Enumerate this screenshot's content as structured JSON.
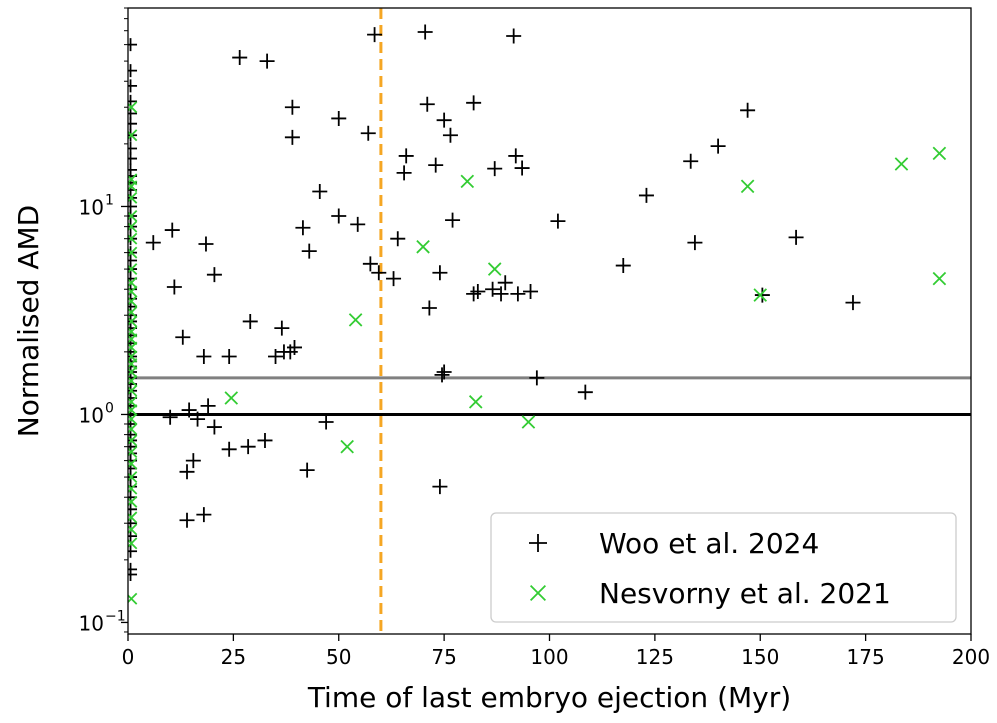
{
  "chart_data": {
    "type": "scatter",
    "title": "",
    "xlabel": "Time of last embryo ejection (Myr)",
    "ylabel": "Normalised AMD",
    "xlim": [
      0,
      200
    ],
    "ylim": [
      0.088,
      90
    ],
    "yscale": "log",
    "grid": false,
    "legend_position": "lower-right",
    "x_ticks": [
      0,
      25,
      50,
      75,
      100,
      125,
      150,
      175,
      200
    ],
    "x_tick_labels": [
      "0",
      "25",
      "50",
      "75",
      "100",
      "125",
      "150",
      "175",
      "200"
    ],
    "y_ticks": [
      0.1,
      1,
      10
    ],
    "y_tick_labels": [
      {
        "base": "10",
        "exp": "−1"
      },
      {
        "base": "10",
        "exp": "0"
      },
      {
        "base": "10",
        "exp": "1"
      }
    ],
    "reference_lines": [
      {
        "orientation": "horizontal",
        "y": 1.5,
        "color": "#808080",
        "style": "solid"
      },
      {
        "orientation": "horizontal",
        "y": 1.0,
        "color": "#000000",
        "style": "solid"
      },
      {
        "orientation": "vertical",
        "x": 60,
        "color": "#f5a623",
        "style": "dashed"
      }
    ],
    "series": [
      {
        "name": "Woo et al. 2024",
        "marker": "plus",
        "color": "#000000",
        "points": [
          [
            26.5,
            52
          ],
          [
            33,
            50
          ],
          [
            58.5,
            67
          ],
          [
            70.5,
            69
          ],
          [
            91.5,
            66
          ],
          [
            39,
            30
          ],
          [
            71,
            31
          ],
          [
            82,
            31.5
          ],
          [
            75,
            26
          ],
          [
            57,
            22.5
          ],
          [
            50,
            26.5
          ],
          [
            39,
            21.5
          ],
          [
            76.5,
            22
          ],
          [
            147,
            29
          ],
          [
            140,
            19.5
          ],
          [
            133.5,
            16.5
          ],
          [
            66,
            17.5
          ],
          [
            92,
            17.5
          ],
          [
            65.5,
            14.5
          ],
          [
            73,
            15.8
          ],
          [
            87,
            15.2
          ],
          [
            93.5,
            15.3
          ],
          [
            45.5,
            11.8
          ],
          [
            123,
            11.3
          ],
          [
            50,
            9
          ],
          [
            54.5,
            8.2
          ],
          [
            41.5,
            7.9
          ],
          [
            77,
            8.6
          ],
          [
            102,
            8.5
          ],
          [
            64,
            7
          ],
          [
            43,
            6.1
          ],
          [
            6,
            6.7
          ],
          [
            10.5,
            7.7
          ],
          [
            18.5,
            6.6
          ],
          [
            134.5,
            6.7
          ],
          [
            158.5,
            7.1
          ],
          [
            20.5,
            4.7
          ],
          [
            57.5,
            5.3
          ],
          [
            59.5,
            4.8
          ],
          [
            63,
            4.5
          ],
          [
            74,
            4.8
          ],
          [
            89.5,
            4.3
          ],
          [
            117.5,
            5.2
          ],
          [
            11,
            4.1
          ],
          [
            82,
            3.8
          ],
          [
            83,
            3.9
          ],
          [
            86.5,
            4
          ],
          [
            88.5,
            3.8
          ],
          [
            92.5,
            3.8
          ],
          [
            95.5,
            3.9
          ],
          [
            150.5,
            3.75
          ],
          [
            172,
            3.45
          ],
          [
            71.5,
            3.25
          ],
          [
            29,
            2.8
          ],
          [
            36.5,
            2.6
          ],
          [
            13,
            2.35
          ],
          [
            35,
            1.9
          ],
          [
            37,
            2.0
          ],
          [
            38.5,
            2.0
          ],
          [
            39.5,
            2.1
          ],
          [
            18,
            1.9
          ],
          [
            24,
            1.9
          ],
          [
            75,
            1.6
          ],
          [
            74.5,
            1.55
          ],
          [
            97,
            1.5
          ],
          [
            108.5,
            1.28
          ],
          [
            10,
            0.97
          ],
          [
            14.5,
            1.05
          ],
          [
            16.5,
            0.95
          ],
          [
            19,
            1.1
          ],
          [
            20.5,
            0.87
          ],
          [
            24,
            0.68
          ],
          [
            28.5,
            0.7
          ],
          [
            32.5,
            0.75
          ],
          [
            47,
            0.92
          ],
          [
            14,
            0.53
          ],
          [
            15.5,
            0.6
          ],
          [
            42.5,
            0.54
          ],
          [
            74,
            0.45
          ],
          [
            14,
            0.31
          ],
          [
            18,
            0.33
          ]
        ]
      },
      {
        "name": "Nesvorny et al. 2021",
        "marker": "cross",
        "color": "#33cc33",
        "points": [
          [
            80.5,
            13.2
          ],
          [
            147,
            12.5
          ],
          [
            183.5,
            16
          ],
          [
            192.5,
            18
          ],
          [
            192.5,
            4.5
          ],
          [
            150,
            3.75
          ],
          [
            70,
            6.4
          ],
          [
            87,
            5
          ],
          [
            54,
            2.85
          ],
          [
            24.5,
            1.2
          ],
          [
            82.5,
            1.15
          ],
          [
            95,
            0.92
          ],
          [
            52,
            0.7
          ]
        ]
      }
    ],
    "axis_clusters": [
      {
        "series": "Woo et al. 2024",
        "x": 0.6,
        "y_values": [
          0.17,
          0.18,
          0.22,
          0.26,
          0.3,
          0.35,
          0.4,
          0.45,
          0.5,
          0.55,
          0.6,
          0.65,
          0.7,
          0.75,
          0.8,
          0.9,
          1.0,
          1.1,
          1.2,
          1.3,
          1.4,
          1.5,
          1.6,
          1.7,
          1.8,
          1.9,
          2.0,
          2.2,
          2.4,
          2.6,
          2.8,
          3.0,
          3.3,
          3.6,
          4.0,
          4.5,
          5,
          5.5,
          6,
          7,
          8,
          9,
          10,
          11,
          12,
          13,
          14,
          15,
          17,
          19,
          22,
          25,
          28,
          32,
          38,
          45,
          60
        ]
      },
      {
        "series": "Nesvorny et al. 2021",
        "x": 0.8,
        "y_values": [
          0.13,
          0.24,
          0.28,
          0.32,
          0.38,
          0.44,
          0.5,
          0.58,
          0.66,
          0.75,
          0.85,
          0.95,
          1.05,
          1.15,
          1.3,
          1.45,
          1.6,
          1.75,
          1.9,
          2.1,
          2.3,
          2.5,
          2.8,
          3.1,
          3.5,
          3.9,
          4.3,
          5,
          6,
          7,
          8,
          9,
          11,
          12.5,
          13.5,
          22,
          30
        ]
      }
    ]
  }
}
